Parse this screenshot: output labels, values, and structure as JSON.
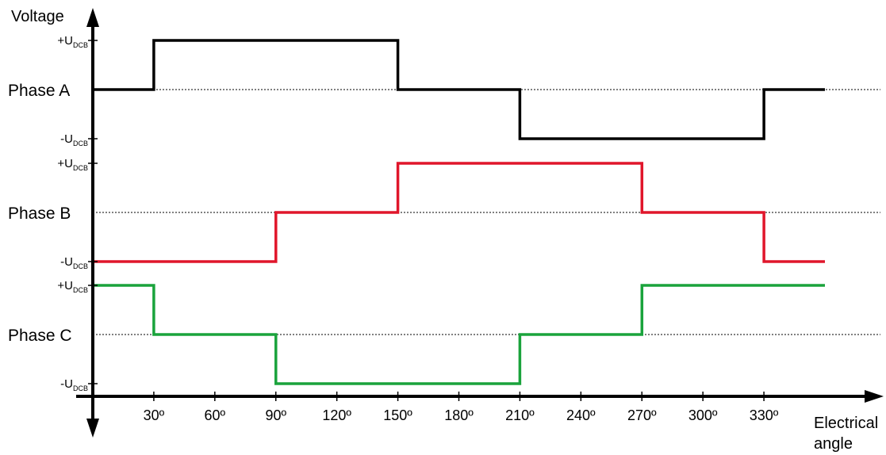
{
  "chart_data": {
    "type": "line",
    "y_title": "Voltage",
    "x_title_lines": [
      "Electrical",
      "angle"
    ],
    "x_ticks": [
      30,
      60,
      90,
      120,
      150,
      180,
      210,
      240,
      270,
      300,
      330
    ],
    "x_tick_labels": [
      "30º",
      "60º",
      "90º",
      "120º",
      "150º",
      "180º",
      "210º",
      "240º",
      "270º",
      "300º",
      "330º"
    ],
    "xlim": [
      0,
      360
    ],
    "level_labels": {
      "pos": {
        "sign": "+U",
        "sub": "DCB"
      },
      "neg": {
        "sign": "-U",
        "sub": "DCB"
      }
    },
    "series": [
      {
        "name": "Phase A",
        "color": "#000000",
        "x": [
          0,
          30,
          30,
          150,
          150,
          210,
          210,
          330,
          330,
          360
        ],
        "y": [
          0,
          0,
          1,
          1,
          0,
          0,
          -1,
          -1,
          0,
          0
        ]
      },
      {
        "name": "Phase B",
        "color": "#e0162b",
        "x": [
          0,
          90,
          90,
          150,
          150,
          270,
          270,
          330,
          330,
          360
        ],
        "y": [
          -1,
          -1,
          0,
          0,
          1,
          1,
          0,
          0,
          -1,
          -1
        ]
      },
      {
        "name": "Phase C",
        "color": "#1aa33c",
        "x": [
          0,
          30,
          30,
          90,
          90,
          210,
          210,
          270,
          270,
          360
        ],
        "y": [
          1,
          1,
          0,
          0,
          -1,
          -1,
          0,
          0,
          1,
          1
        ]
      }
    ]
  }
}
